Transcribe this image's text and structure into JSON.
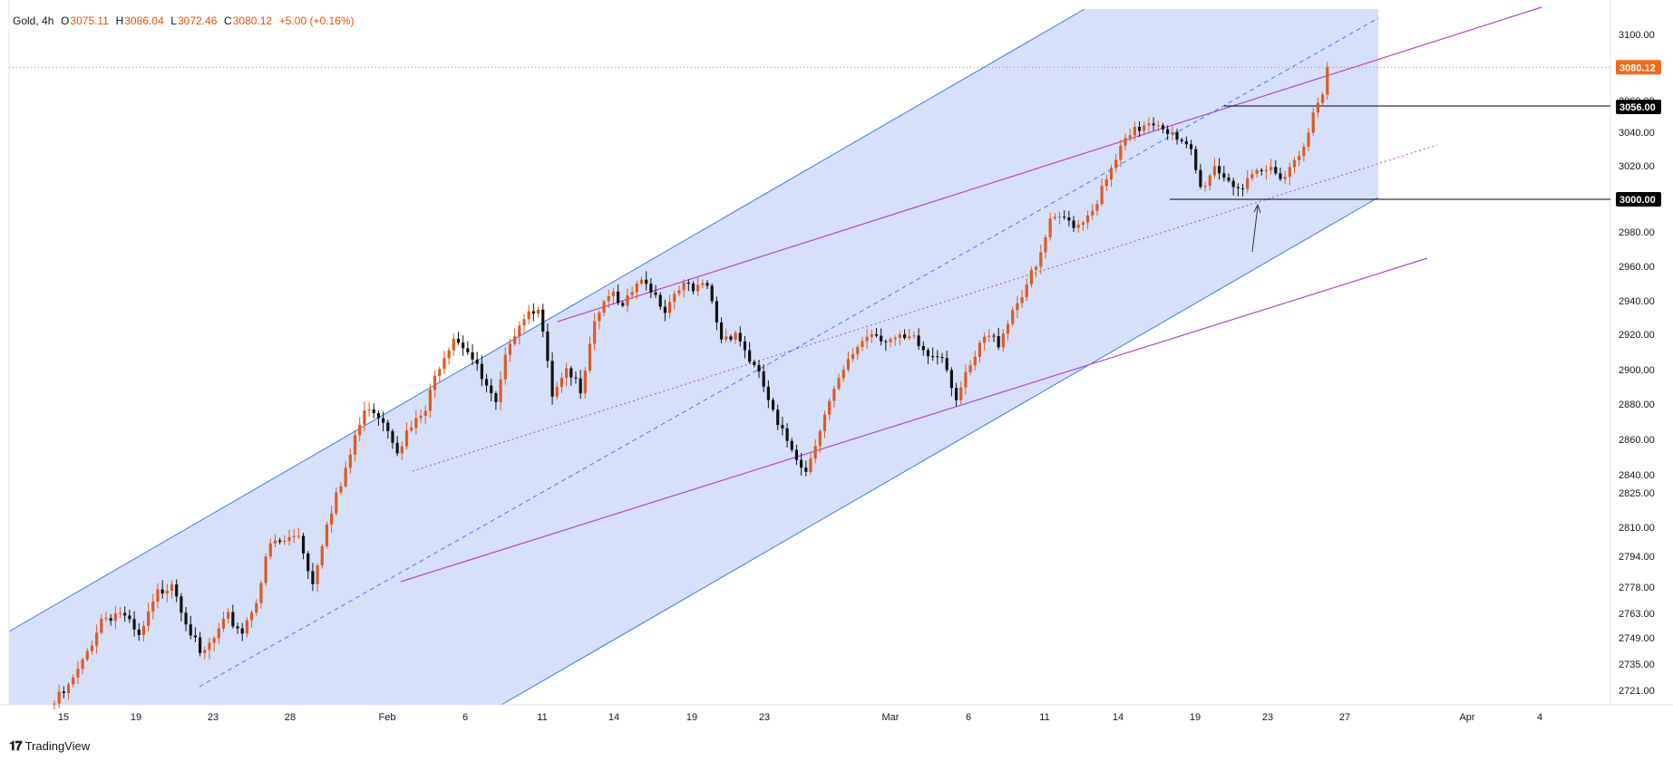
{
  "legend": {
    "symbol": "Gold, 4h",
    "o_label": "O",
    "o": "3075.11",
    "h_label": "H",
    "h": "3086.04",
    "l_label": "L",
    "l": "3072.46",
    "c_label": "C",
    "c": "3080.12",
    "change": "+5.00 (+0.16%)"
  },
  "brand": {
    "name": "TradingView"
  },
  "colors": {
    "up": "#e05a1f",
    "down": "#111111",
    "channel_fill": "#d6e0fb",
    "channel_line": "#3f78e6",
    "purple": "#b046c9",
    "price_tag": "#f06a1c"
  },
  "chart_data": {
    "type": "candlestick",
    "interval": "4h",
    "ylim": [
      2714,
      3114
    ],
    "price_axis_labels": [
      "3100.00",
      "3060.00",
      "3040.00",
      "3020.00",
      "3000.00",
      "2980.00",
      "2960.00",
      "2940.00",
      "2920.00",
      "2900.00",
      "2880.00",
      "2860.00",
      "2840.00",
      "2825.00",
      "2810.00",
      "2794.00",
      "2778.00",
      "2763.00",
      "2749.00",
      "2735.00",
      "2721.00"
    ],
    "price_tags": [
      {
        "value": 3080.12,
        "label": "3080.12",
        "style": "last"
      },
      {
        "value": 3056.0,
        "label": "3056.00",
        "style": "level"
      },
      {
        "value": 3000.0,
        "label": "3000.00",
        "style": "level"
      }
    ],
    "date_labels": [
      "15",
      "19",
      "23",
      "28",
      "Feb",
      "6",
      "11",
      "14",
      "19",
      "23",
      "Mar",
      "6",
      "11",
      "14",
      "19",
      "23",
      "27",
      "Apr",
      "4"
    ],
    "price_path": [
      [
        0,
        2714
      ],
      [
        3,
        2722
      ],
      [
        6,
        2735
      ],
      [
        10,
        2760
      ],
      [
        14,
        2764
      ],
      [
        18,
        2748
      ],
      [
        22,
        2774
      ],
      [
        25,
        2782
      ],
      [
        28,
        2760
      ],
      [
        31,
        2738
      ],
      [
        34,
        2748
      ],
      [
        37,
        2760
      ],
      [
        40,
        2753
      ],
      [
        43,
        2772
      ],
      [
        46,
        2800
      ],
      [
        49,
        2802
      ],
      [
        52,
        2806
      ],
      [
        55,
        2780
      ],
      [
        58,
        2814
      ],
      [
        61,
        2830
      ],
      [
        64,
        2862
      ],
      [
        67,
        2880
      ],
      [
        70,
        2872
      ],
      [
        73,
        2856
      ],
      [
        76,
        2866
      ],
      [
        79,
        2876
      ],
      [
        82,
        2904
      ],
      [
        85,
        2920
      ],
      [
        88,
        2912
      ],
      [
        91,
        2894
      ],
      [
        94,
        2878
      ],
      [
        97,
        2918
      ],
      [
        100,
        2932
      ],
      [
        103,
        2938
      ],
      [
        106,
        2883
      ],
      [
        109,
        2897
      ],
      [
        112,
        2890
      ],
      [
        115,
        2930
      ],
      [
        118,
        2945
      ],
      [
        121,
        2934
      ],
      [
        124,
        2950
      ],
      [
        127,
        2948
      ],
      [
        130,
        2935
      ],
      [
        133,
        2950
      ],
      [
        136,
        2945
      ],
      [
        139,
        2948
      ],
      [
        142,
        2918
      ],
      [
        145,
        2922
      ],
      [
        148,
        2906
      ],
      [
        151,
        2890
      ],
      [
        154,
        2866
      ],
      [
        157,
        2856
      ],
      [
        160,
        2842
      ],
      [
        162,
        2860
      ],
      [
        165,
        2880
      ],
      [
        168,
        2898
      ],
      [
        171,
        2914
      ],
      [
        174,
        2922
      ],
      [
        177,
        2918
      ],
      [
        180,
        2916
      ],
      [
        183,
        2916
      ],
      [
        186,
        2908
      ],
      [
        189,
        2910
      ],
      [
        192,
        2884
      ],
      [
        195,
        2900
      ],
      [
        198,
        2918
      ],
      [
        201,
        2916
      ],
      [
        204,
        2935
      ],
      [
        207,
        2950
      ],
      [
        209,
        2958
      ],
      [
        212,
        2985
      ],
      [
        215,
        2988
      ],
      [
        218,
        2985
      ],
      [
        221,
        2995
      ],
      [
        224,
        3010
      ],
      [
        227,
        3030
      ],
      [
        230,
        3040
      ],
      [
        233,
        3048
      ],
      [
        236,
        3045
      ],
      [
        239,
        3034
      ],
      [
        242,
        3028
      ],
      [
        244,
        3006
      ],
      [
        247,
        3020
      ],
      [
        250,
        3012
      ],
      [
        253,
        3006
      ],
      [
        256,
        3014
      ],
      [
        259,
        3018
      ],
      [
        262,
        3015
      ],
      [
        265,
        3028
      ],
      [
        268,
        3050
      ],
      [
        270,
        3062
      ],
      [
        271,
        3080.12
      ]
    ]
  }
}
